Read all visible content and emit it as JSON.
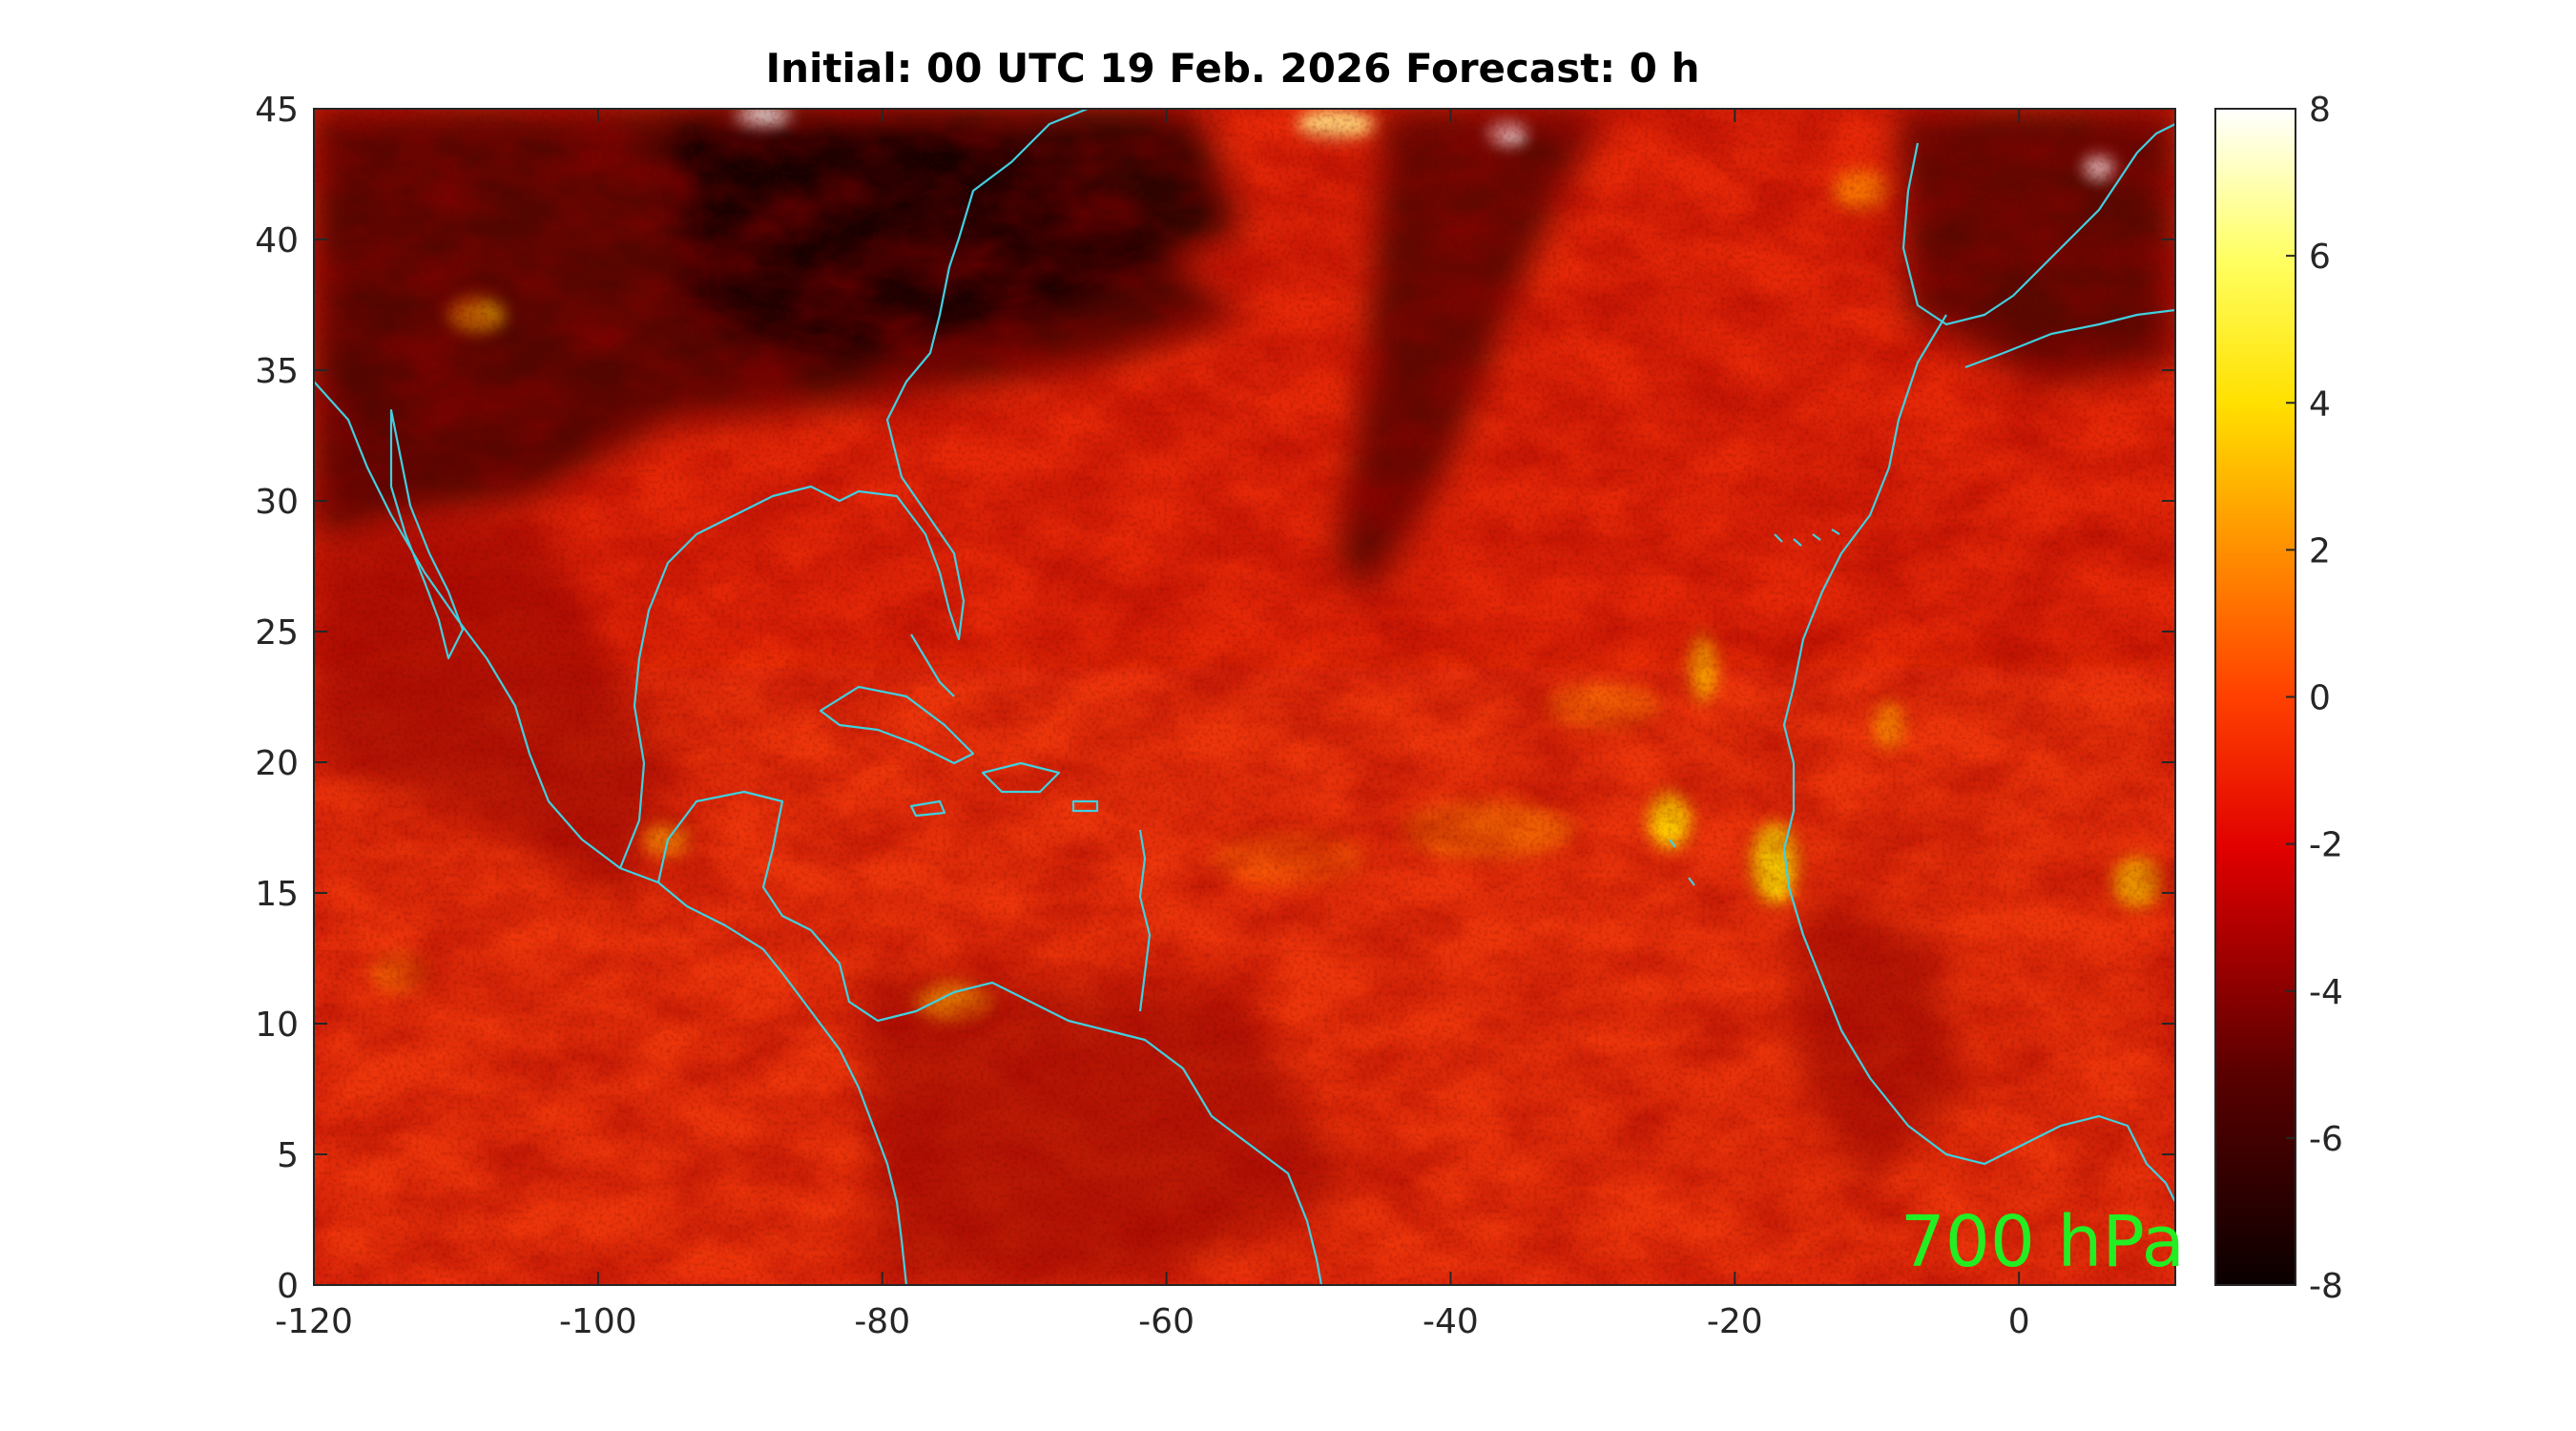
{
  "title": "Initial: 00 UTC 19 Feb. 2026 Forecast: 0 h",
  "level_label": "700 hPa",
  "coastline_color": "#40d0e0",
  "map": {
    "xlim": [
      -120,
      11
    ],
    "ylim": [
      0,
      45
    ],
    "x_ticks": [
      "-120",
      "-100",
      "-80",
      "-60",
      "-40",
      "-20",
      "0"
    ],
    "x_tick_values": [
      -120,
      -100,
      -80,
      -60,
      -40,
      -20,
      0
    ],
    "y_ticks": [
      "0",
      "5",
      "10",
      "15",
      "20",
      "25",
      "30",
      "35",
      "40",
      "45"
    ],
    "y_tick_values": [
      0,
      5,
      10,
      15,
      20,
      25,
      30,
      35,
      40,
      45
    ]
  },
  "colorbar": {
    "colormap": "hot",
    "range": [
      -8,
      8
    ],
    "ticks": [
      "-8",
      "-6",
      "-4",
      "-2",
      "0",
      "2",
      "4",
      "6",
      "8"
    ],
    "tick_values": [
      -8,
      -6,
      -4,
      -2,
      0,
      2,
      4,
      6,
      8
    ]
  }
}
